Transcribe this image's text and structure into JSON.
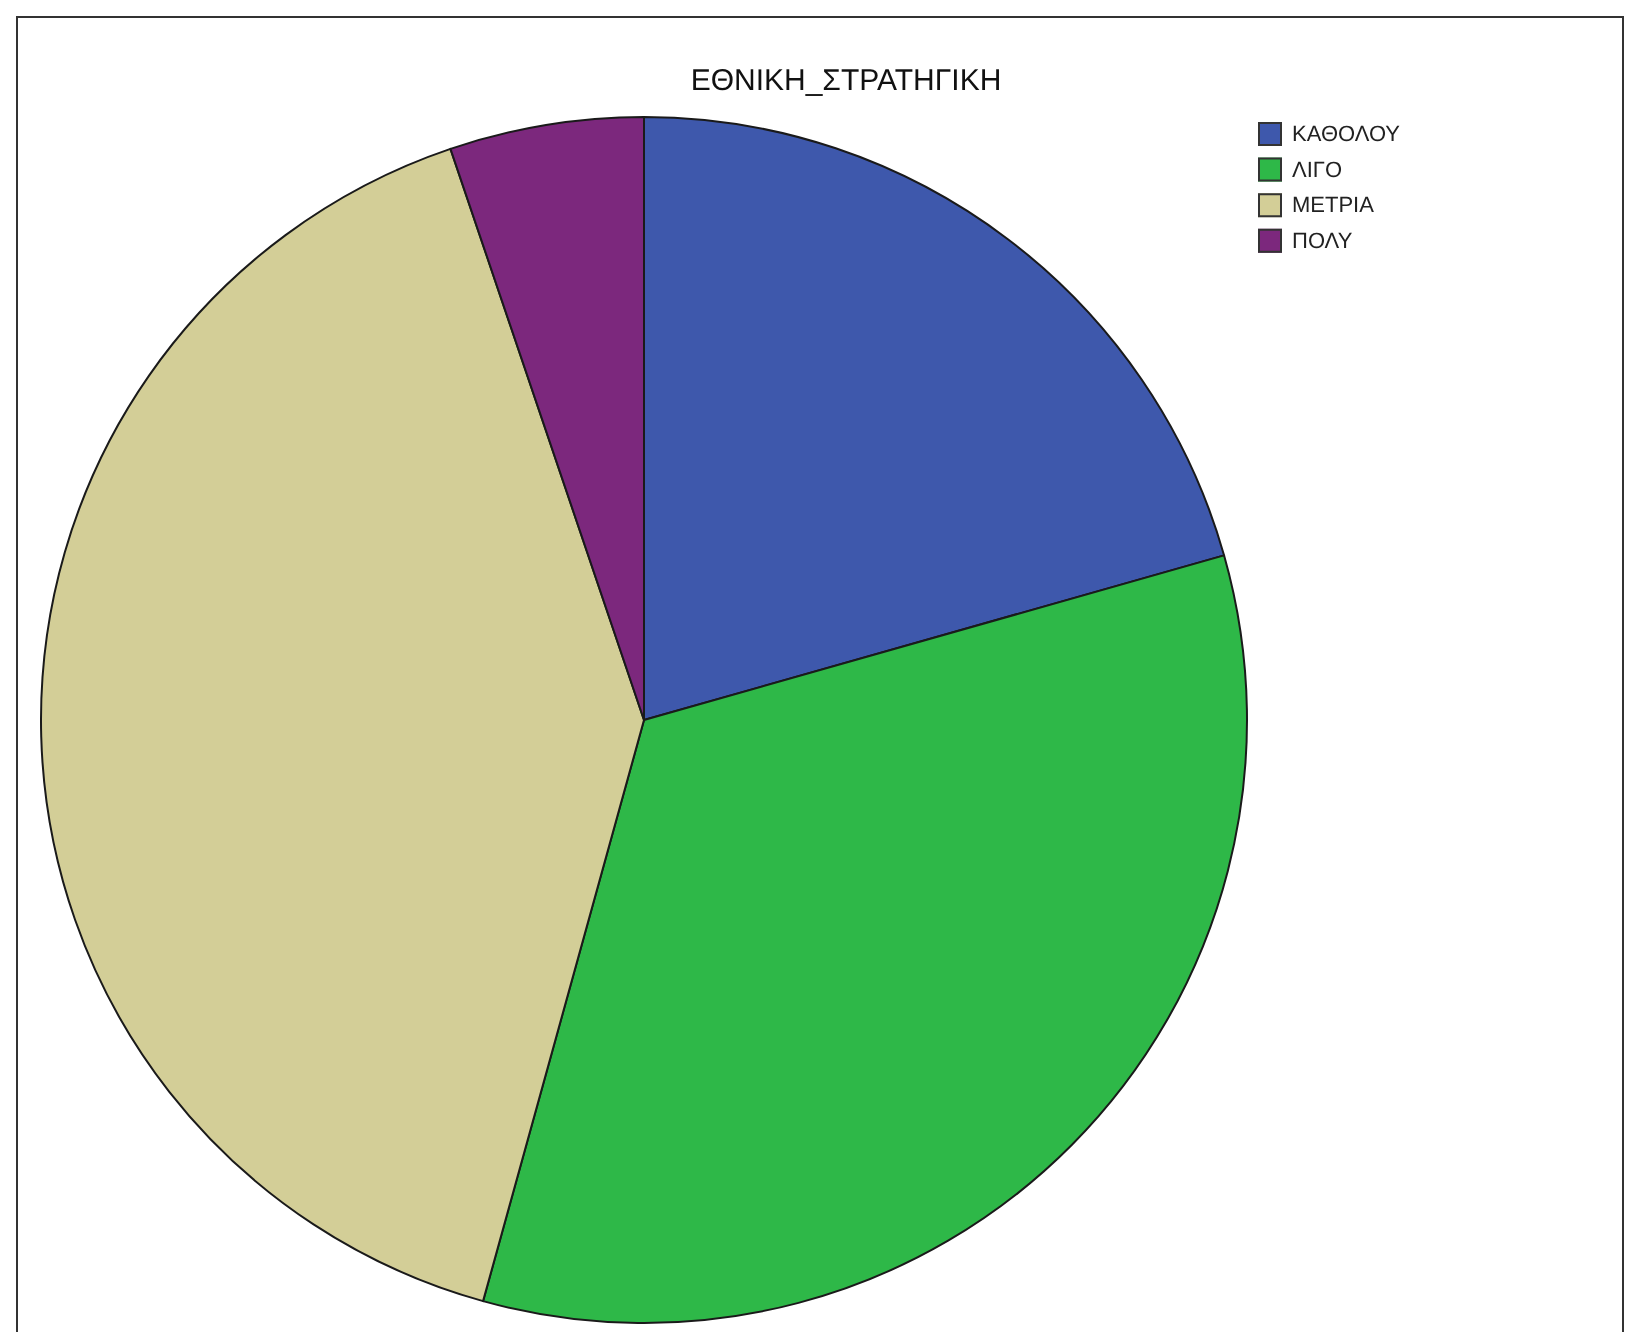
{
  "chart_data": {
    "type": "pie",
    "title": "ΕΘΝΙΚΗ_ΣΤΡΑΤΗΓΙΚΗ",
    "categories": [
      "ΚΑΘΟΛΟΥ",
      "ΛΙΓΟ",
      "ΜΕΤΡΙΑ",
      "ΠΟΛΥ"
    ],
    "values": [
      20.6,
      33.7,
      40.5,
      5.2
    ],
    "colors": [
      "#3e58ac",
      "#2eb848",
      "#d3ce97",
      "#7c287d"
    ],
    "legend": "top right"
  }
}
